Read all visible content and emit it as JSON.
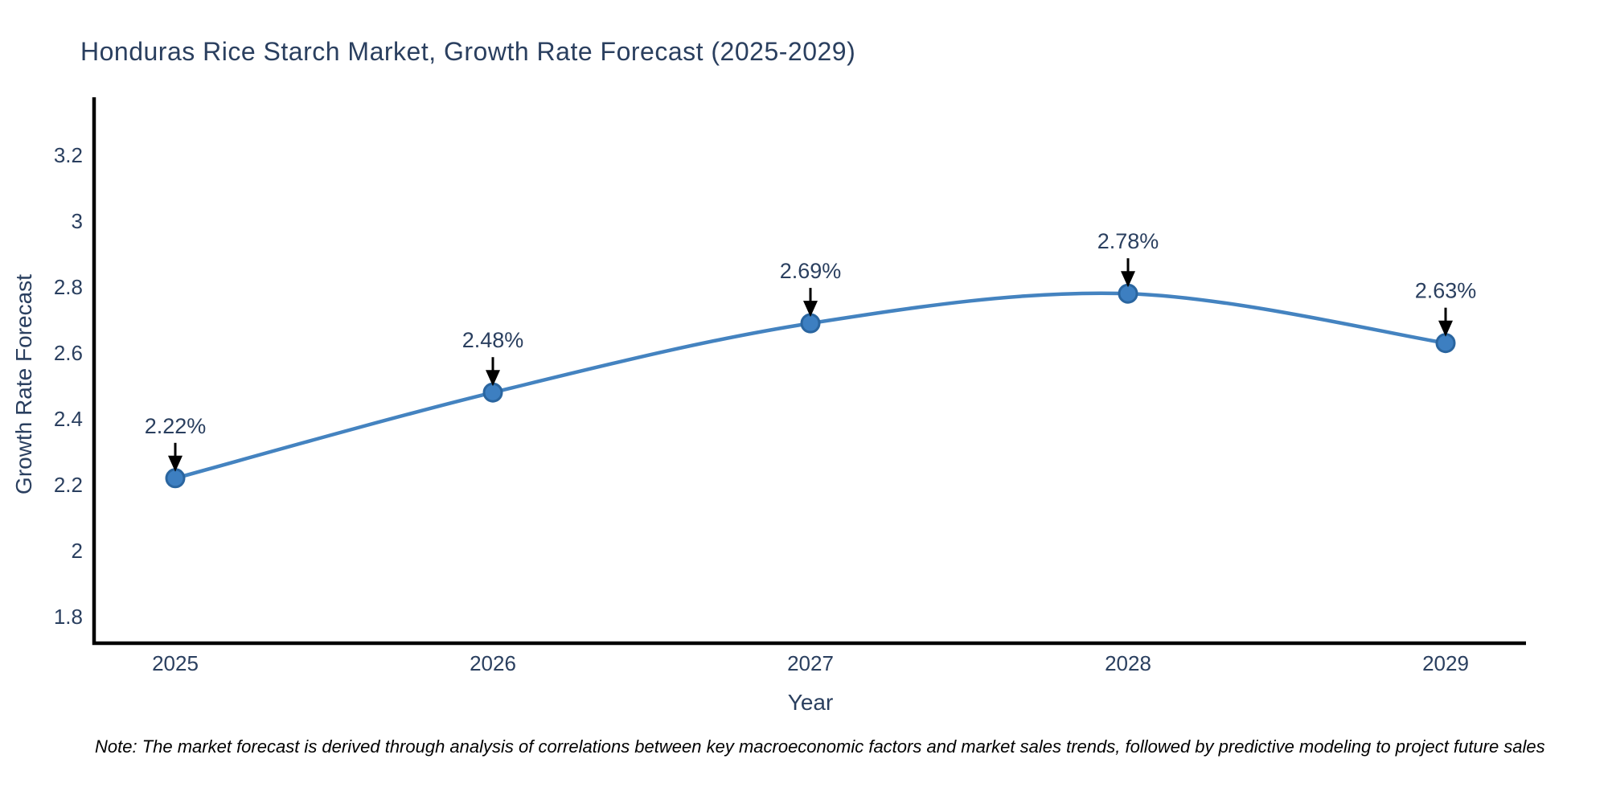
{
  "note": "Note: The market forecast is derived through analysis of correlations between key macroeconomic factors and market sales trends, followed by predictive modeling to project future sales",
  "chart_data": {
    "type": "line",
    "title": "Honduras Rice Starch Market, Growth Rate Forecast (2025-2029)",
    "xlabel": "Year",
    "ylabel": "Growth Rate Forecast",
    "x": [
      2025,
      2026,
      2027,
      2028,
      2029
    ],
    "series": [
      {
        "name": "Growth Rate Forecast",
        "values": [
          2.22,
          2.48,
          2.69,
          2.78,
          2.63
        ]
      }
    ],
    "point_labels": [
      "2.22%",
      "2.48%",
      "2.69%",
      "2.78%",
      "2.63%"
    ],
    "xtick_labels": [
      "2025",
      "2026",
      "2027",
      "2028",
      "2029"
    ],
    "ytick_labels": [
      "1.8",
      "2",
      "2.2",
      "2.4",
      "2.6",
      "2.8",
      "3",
      "3.2"
    ],
    "yticks": [
      1.8,
      2.0,
      2.2,
      2.4,
      2.6,
      2.8,
      3.0,
      3.2
    ],
    "ylim": [
      1.72,
      3.37
    ],
    "xlim": [
      2024.74,
      2029.26
    ],
    "grid": false,
    "legend": "none",
    "line_shape": "spline",
    "colors": {
      "line": "#4483c0",
      "marker_fill": "#3d7fc1",
      "marker_edge": "#2a659f",
      "axis_line": "#000000",
      "axis_text": "#2a3f5f",
      "annotation_text": "#2a3f5f",
      "annotation_arrow": "#000000",
      "note_text": "#000000"
    }
  }
}
